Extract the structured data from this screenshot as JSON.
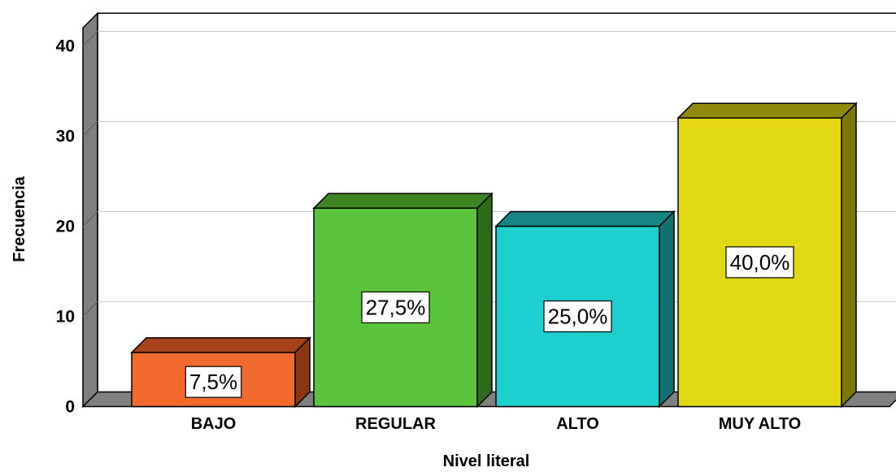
{
  "chart_data": {
    "type": "bar",
    "title": "",
    "xlabel": "Nivel literal",
    "ylabel": "Frecuencia",
    "categories": [
      "BAJO",
      "REGULAR",
      "ALTO",
      "MUY ALTO"
    ],
    "values": [
      6,
      22,
      20,
      32
    ],
    "percent_labels": [
      "7,5%",
      "27,5%",
      "25,0%",
      "40,0%"
    ],
    "yticks": [
      "0",
      "10",
      "20",
      "30",
      "40"
    ],
    "ylim": [
      0,
      42
    ],
    "grid": true,
    "legend": "none",
    "bar_colors": [
      {
        "front": "#f26a2e",
        "top": "#a8421c",
        "side": "#8a3615"
      },
      {
        "front": "#5cc43c",
        "top": "#3f8526",
        "side": "#2f6a1c"
      },
      {
        "front": "#1ecfcf",
        "top": "#178585",
        "side": "#127070"
      },
      {
        "front": "#e2d813",
        "top": "#908a0a",
        "side": "#7c7708"
      }
    ],
    "wall_color": "#808080",
    "gridline_color": "#c8c8c8"
  }
}
